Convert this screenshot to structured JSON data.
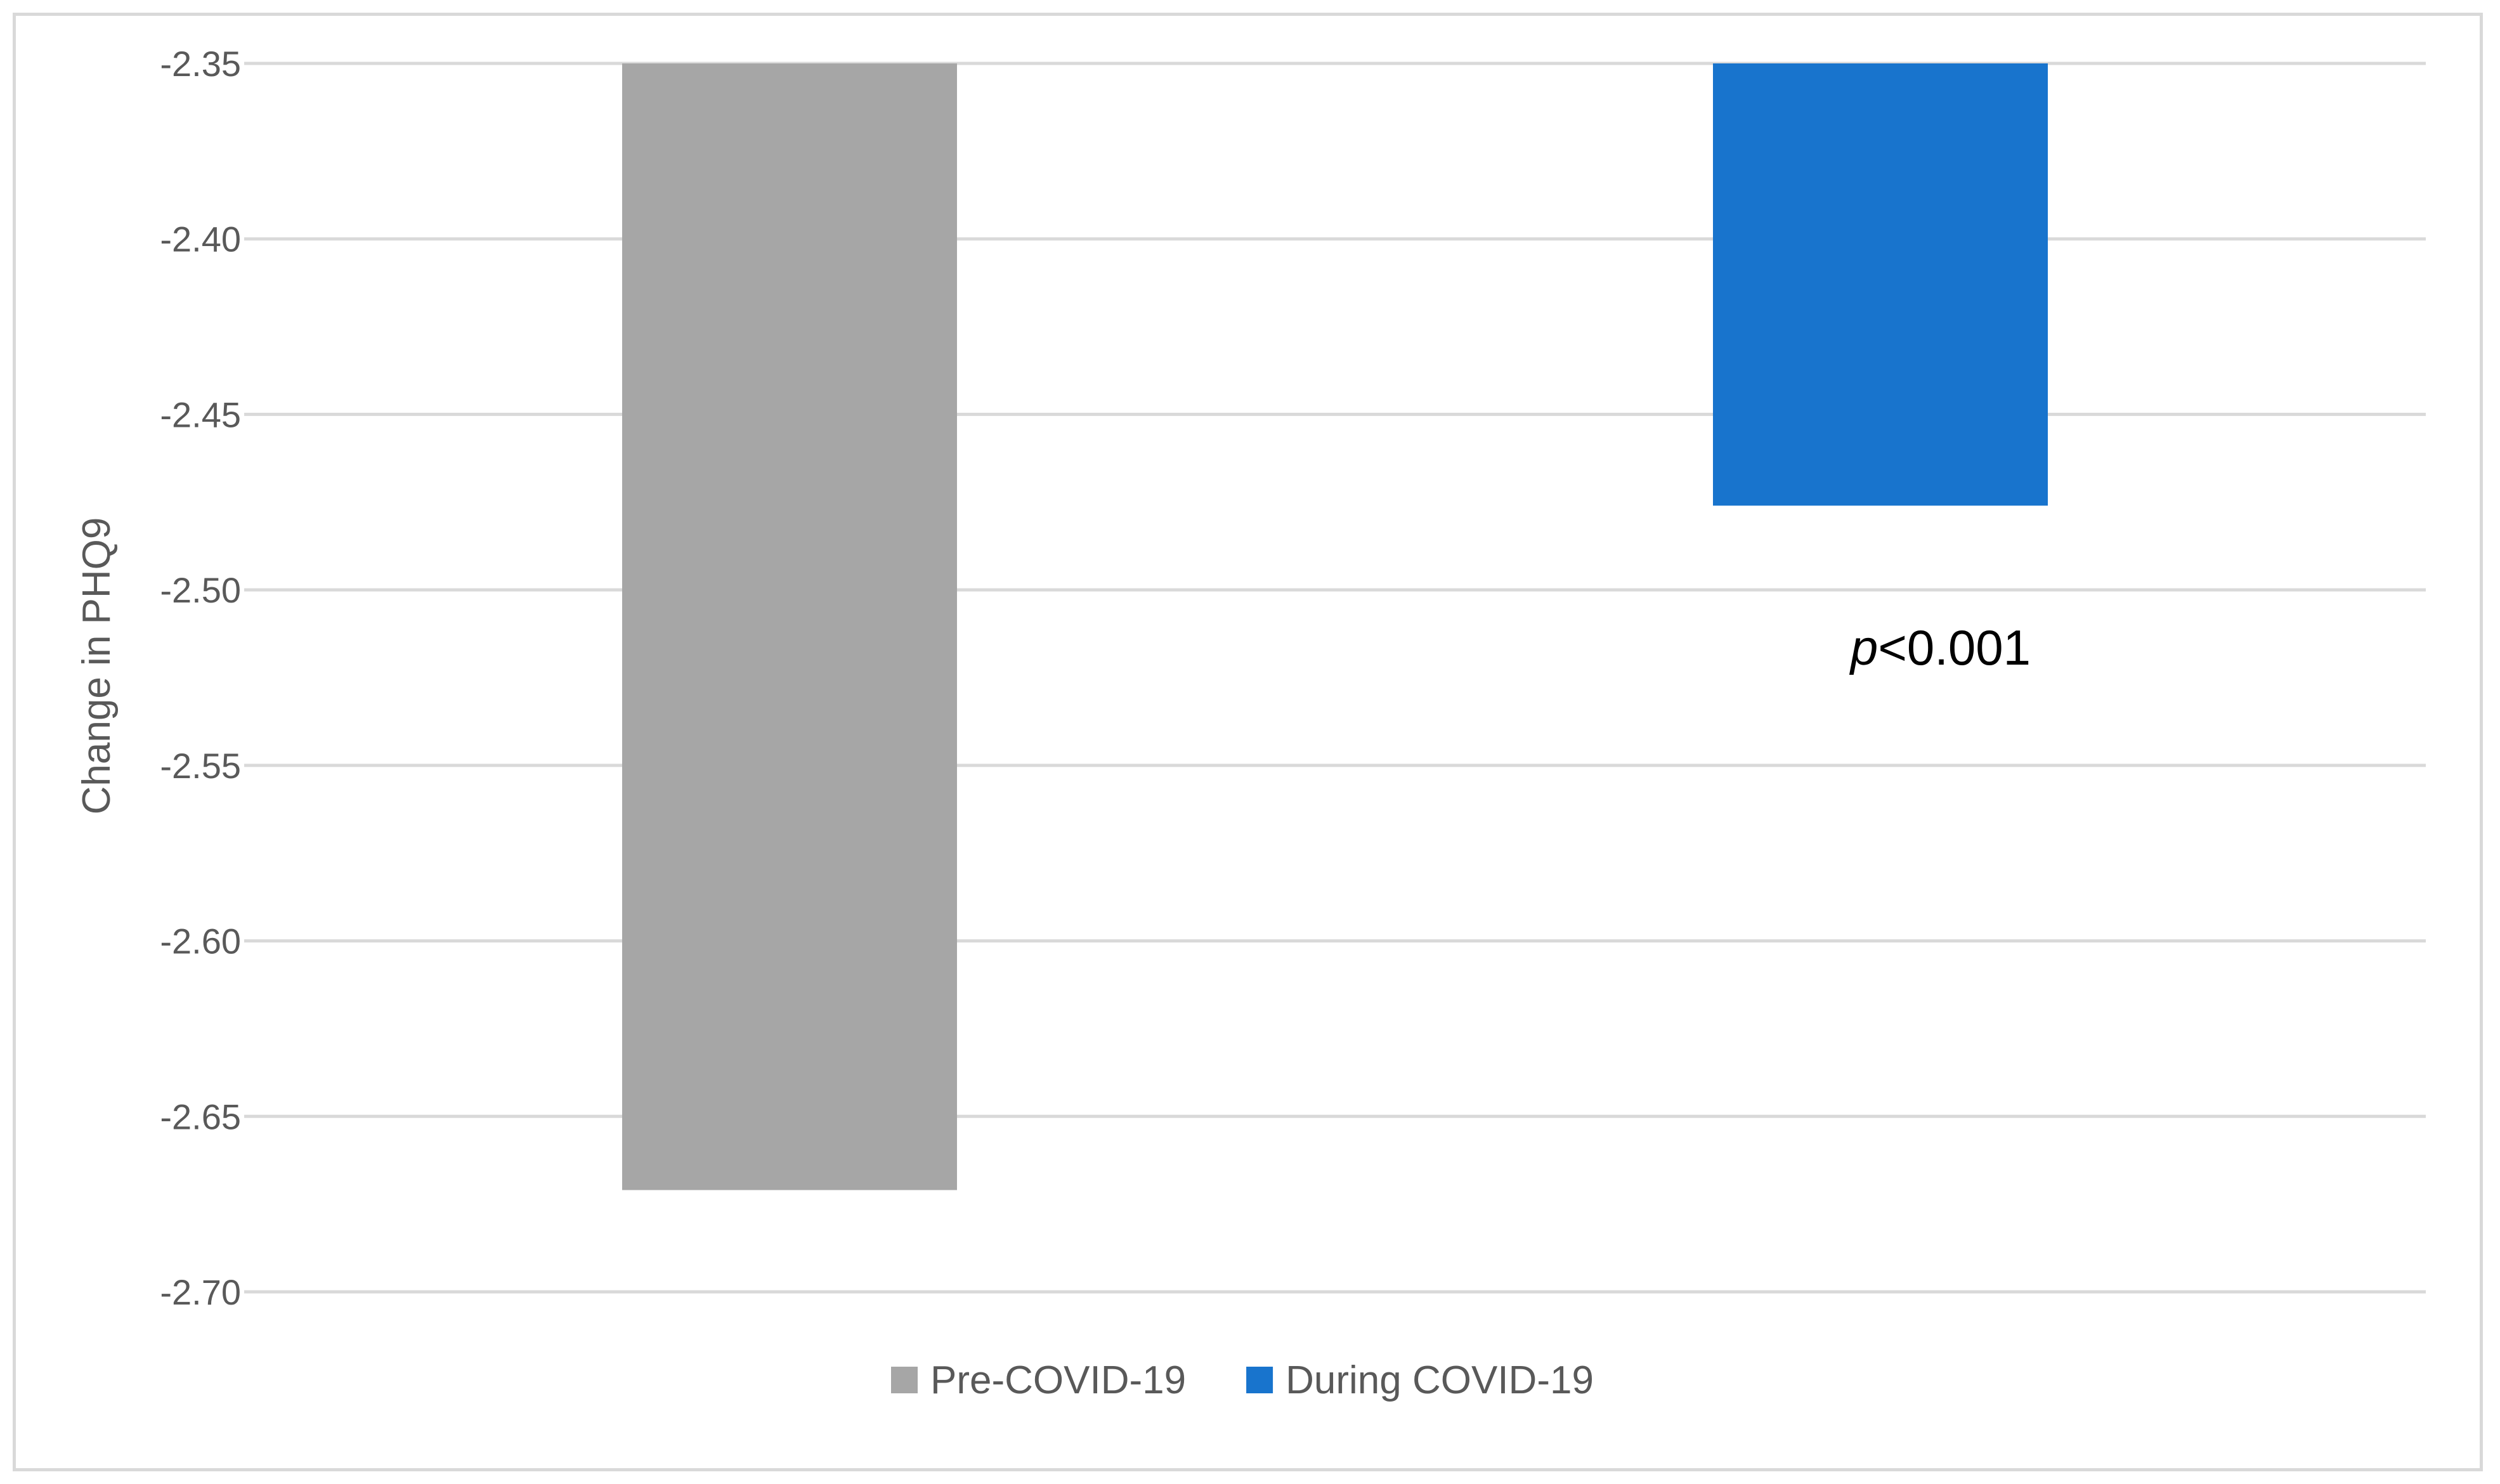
{
  "chart_data": {
    "type": "bar",
    "categories": [
      "Pre-COVID-19",
      "During COVID-19"
    ],
    "series": [
      {
        "name": "Pre-COVID-19",
        "values": [
          -2.671,
          null
        ],
        "color": "#a6a6a6"
      },
      {
        "name": "During COVID-19",
        "values": [
          null,
          -2.476
        ],
        "color": "#1874cd"
      }
    ],
    "values": [
      -2.671,
      -2.476
    ],
    "colors": [
      "#a6a6a6",
      "#1874cd"
    ],
    "ylabel": "Change in PHQ9",
    "xlabel": "",
    "ylim": [
      -2.7,
      -2.35
    ],
    "yticks": [
      "-2.35",
      "-2.40",
      "-2.45",
      "-2.50",
      "-2.55",
      "-2.60",
      "-2.65",
      "-2.70"
    ],
    "bar_base": -2.35,
    "grid": true,
    "legend_position": "bottom",
    "annotation": {
      "italic": "p",
      "rest": "<0.001"
    },
    "gridline_color": "#d9d9d9"
  }
}
